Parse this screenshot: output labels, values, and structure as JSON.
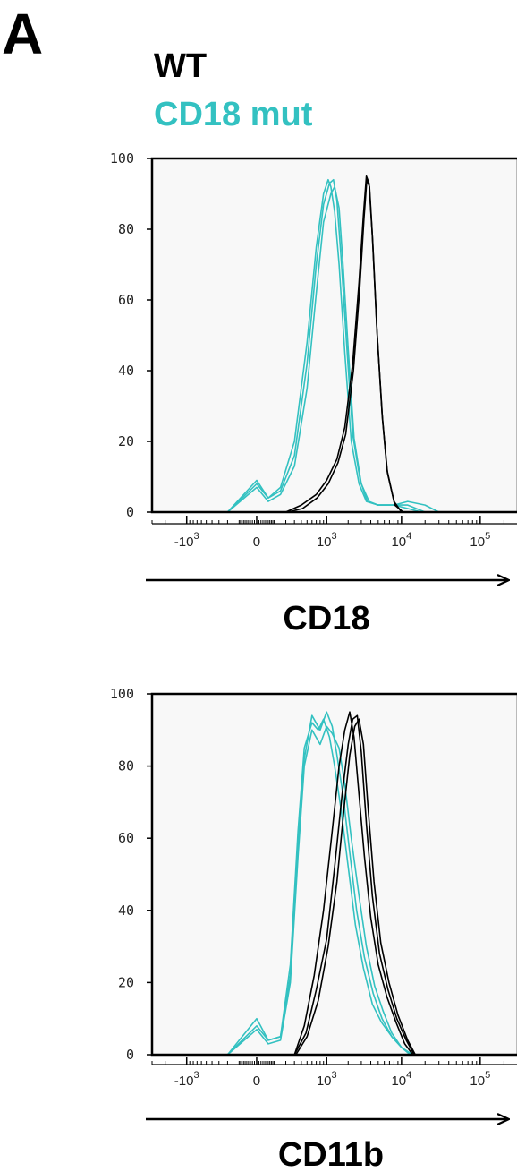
{
  "figure": {
    "panel_label": "A",
    "legend": [
      {
        "label": "WT",
        "color": "#000000"
      },
      {
        "label": "CD18 mut",
        "color": "#33c1c1"
      }
    ]
  },
  "colors": {
    "wt": "#000000",
    "mut": "#33c1c1",
    "plot_bg": "#f8f8f8"
  },
  "chart_data": [
    {
      "type": "line",
      "title": "",
      "xlabel": "CD18",
      "ylabel": "",
      "x_scale": "logicle",
      "xlim": [
        -3000,
        300000
      ],
      "ylim": [
        0,
        100
      ],
      "yticks": [
        "0",
        "20",
        "40",
        "60",
        "80",
        "100"
      ],
      "xticks": [
        {
          "base": "-10",
          "exp": "3",
          "value": -1000
        },
        {
          "base": "0",
          "exp": "",
          "value": 0
        },
        {
          "base": "10",
          "exp": "3",
          "value": 1000
        },
        {
          "base": "10",
          "exp": "4",
          "value": 10000
        },
        {
          "base": "10",
          "exp": "5",
          "value": 100000
        }
      ],
      "series": [
        {
          "group": "mut",
          "x": [
            -200,
            0,
            60,
            150,
            300,
            500,
            700,
            900,
            1050,
            1150,
            1300,
            1500,
            1800,
            2200,
            2800,
            3500,
            5000,
            8000,
            12000,
            20000,
            30000
          ],
          "y": [
            0,
            9,
            4,
            7,
            20,
            48,
            75,
            90,
            94,
            92,
            85,
            70,
            45,
            20,
            8,
            3,
            2,
            2,
            3,
            2,
            0
          ]
        },
        {
          "group": "mut",
          "x": [
            -200,
            0,
            60,
            150,
            300,
            500,
            700,
            900,
            1100,
            1250,
            1400,
            1600,
            1900,
            2300,
            2900,
            3600,
            5000,
            8000,
            12000,
            20000
          ],
          "y": [
            0,
            8,
            4,
            6,
            16,
            42,
            70,
            87,
            93,
            94,
            88,
            72,
            48,
            22,
            9,
            3,
            2,
            2,
            2,
            0
          ]
        },
        {
          "group": "mut",
          "x": [
            -200,
            0,
            60,
            150,
            300,
            500,
            700,
            900,
            1150,
            1300,
            1500,
            1700,
            2000,
            2400,
            3000,
            3800,
            5000,
            8000,
            12000,
            18000
          ],
          "y": [
            0,
            7,
            3,
            5,
            13,
            35,
            62,
            82,
            90,
            92,
            86,
            70,
            46,
            21,
            8,
            3,
            2,
            2,
            1,
            0
          ]
        },
        {
          "group": "wt",
          "x": [
            200,
            400,
            700,
            1000,
            1400,
            1800,
            2300,
            2800,
            3200,
            3500,
            3800,
            4200,
            4800,
            5600,
            6500,
            8000,
            10000
          ],
          "y": [
            0,
            2,
            5,
            9,
            15,
            24,
            42,
            65,
            84,
            95,
            93,
            78,
            52,
            28,
            12,
            3,
            0
          ]
        },
        {
          "group": "wt",
          "x": [
            220,
            420,
            720,
            1050,
            1450,
            1850,
            2350,
            2850,
            3250,
            3550,
            3850,
            4250,
            4850,
            5700,
            6600,
            8200,
            10500
          ],
          "y": [
            0,
            1,
            4,
            8,
            14,
            22,
            40,
            63,
            83,
            94,
            92,
            76,
            50,
            26,
            11,
            2,
            0
          ]
        }
      ]
    },
    {
      "type": "line",
      "title": "",
      "xlabel": "CD11b",
      "ylabel": "",
      "x_scale": "logicle",
      "xlim": [
        -3000,
        300000
      ],
      "ylim": [
        0,
        100
      ],
      "yticks": [
        "0",
        "20",
        "40",
        "60",
        "80",
        "100"
      ],
      "xticks": [
        {
          "base": "-10",
          "exp": "3",
          "value": -1000
        },
        {
          "base": "0",
          "exp": "",
          "value": 0
        },
        {
          "base": "10",
          "exp": "3",
          "value": 1000
        },
        {
          "base": "10",
          "exp": "4",
          "value": 10000
        },
        {
          "base": "10",
          "exp": "5",
          "value": 100000
        }
      ],
      "series": [
        {
          "group": "mut",
          "x": [
            -200,
            0,
            60,
            150,
            250,
            350,
            450,
            600,
            750,
            900,
            1100,
            1300,
            1600,
            2000,
            2500,
            3200,
            4200,
            5500,
            7500,
            10000,
            13000
          ],
          "y": [
            0,
            8,
            4,
            5,
            25,
            62,
            85,
            92,
            90,
            93,
            88,
            80,
            68,
            52,
            36,
            24,
            14,
            9,
            5,
            2,
            0
          ]
        },
        {
          "group": "mut",
          "x": [
            -200,
            0,
            60,
            150,
            250,
            350,
            450,
            600,
            800,
            1000,
            1200,
            1400,
            1700,
            2100,
            2600,
            3300,
            4300,
            5600,
            7500,
            10000,
            13000
          ],
          "y": [
            0,
            10,
            4,
            5,
            22,
            58,
            82,
            94,
            90,
            95,
            91,
            83,
            72,
            56,
            40,
            27,
            17,
            10,
            5,
            2,
            0
          ]
        },
        {
          "group": "mut",
          "x": [
            -200,
            0,
            60,
            150,
            250,
            350,
            450,
            600,
            800,
            1000,
            1200,
            1500,
            1800,
            2200,
            2800,
            3500,
            4500,
            5800,
            7500,
            10000,
            14000
          ],
          "y": [
            0,
            7,
            3,
            4,
            20,
            55,
            80,
            90,
            86,
            91,
            89,
            85,
            75,
            60,
            44,
            30,
            19,
            12,
            6,
            2,
            0
          ]
        },
        {
          "group": "wt",
          "x": [
            300,
            450,
            650,
            900,
            1200,
            1500,
            1800,
            2100,
            2400,
            2800,
            3300,
            4000,
            5000,
            6500,
            8500,
            11000,
            14000
          ],
          "y": [
            0,
            8,
            22,
            40,
            62,
            80,
            90,
            95,
            88,
            72,
            55,
            38,
            25,
            16,
            9,
            3,
            0
          ]
        },
        {
          "group": "wt",
          "x": [
            300,
            480,
            700,
            1000,
            1300,
            1650,
            2000,
            2300,
            2650,
            3000,
            3500,
            4200,
            5200,
            6700,
            8700,
            11500,
            14500
          ],
          "y": [
            0,
            6,
            18,
            32,
            52,
            72,
            86,
            93,
            94,
            84,
            64,
            44,
            28,
            18,
            10,
            4,
            0
          ]
        },
        {
          "group": "wt",
          "x": [
            320,
            500,
            750,
            1050,
            1400,
            1750,
            2100,
            2450,
            2800,
            3200,
            3700,
            4400,
            5400,
            6900,
            9000,
            12000,
            15000
          ],
          "y": [
            0,
            5,
            15,
            30,
            48,
            68,
            83,
            91,
            93,
            86,
            68,
            48,
            31,
            20,
            11,
            4,
            0
          ]
        }
      ]
    }
  ]
}
